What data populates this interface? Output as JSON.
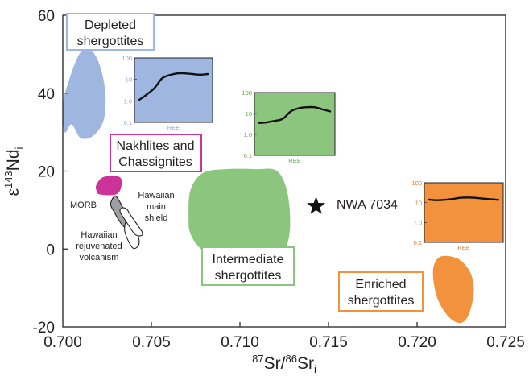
{
  "chart_data": {
    "type": "scatter",
    "title": "",
    "xlabel": {
      "sup1": "87",
      "base1": "Sr/",
      "sup2": "86",
      "base2": "Sr",
      "sub": "i"
    },
    "ylabel": {
      "prefix": "ε",
      "sup": "143",
      "base": "Nd",
      "sub": "i"
    },
    "xlim": [
      0.7,
      0.725
    ],
    "ylim": [
      -20,
      60
    ],
    "x_ticks": [
      "0.700",
      "0.705",
      "0.710",
      "0.715",
      "0.720",
      "0.725"
    ],
    "y_ticks": [
      "60",
      "40",
      "20",
      "0",
      "-20"
    ],
    "grid": false,
    "fields": [
      {
        "name": "Depleted shergottites",
        "color": "#9fb6e0",
        "outline": [
          [
            0.7005,
            32
          ],
          [
            0.7001,
            30
          ],
          [
            0.7,
            37
          ],
          [
            0.7004,
            44
          ],
          [
            0.701,
            50.5
          ],
          [
            0.7016,
            51
          ],
          [
            0.7021,
            47
          ],
          [
            0.7024,
            40
          ],
          [
            0.7023,
            33
          ],
          [
            0.7017,
            29
          ],
          [
            0.701,
            28.5
          ]
        ]
      },
      {
        "name": "Nakhlites and Chassignites",
        "color": "#cc3399",
        "outline": [
          [
            0.7019,
            16.5
          ],
          [
            0.7023,
            18.5
          ],
          [
            0.7032,
            18.5
          ],
          [
            0.7033,
            16
          ],
          [
            0.703,
            14
          ],
          [
            0.7021,
            14
          ],
          [
            0.7019,
            15
          ]
        ]
      },
      {
        "name": "Intermediate shergottites",
        "color": "#8cc67e",
        "outline": [
          [
            0.7071,
            8
          ],
          [
            0.7072,
            15
          ],
          [
            0.7079,
            19.5
          ],
          [
            0.7092,
            20.5
          ],
          [
            0.7109,
            20.5
          ],
          [
            0.7121,
            20
          ],
          [
            0.7127,
            14
          ],
          [
            0.7128,
            4
          ],
          [
            0.7122,
            -3
          ],
          [
            0.7111,
            -5.5
          ],
          [
            0.7093,
            -5
          ],
          [
            0.7078,
            0
          ],
          [
            0.7072,
            4
          ]
        ]
      },
      {
        "name": "Enriched shergottites",
        "color": "#f3923c",
        "outline": [
          [
            0.7209,
            -5.5
          ],
          [
            0.7213,
            -2
          ],
          [
            0.7223,
            -2.5
          ],
          [
            0.723,
            -6
          ],
          [
            0.7232,
            -11
          ],
          [
            0.7229,
            -17
          ],
          [
            0.7224,
            -19
          ],
          [
            0.7217,
            -17
          ],
          [
            0.7211,
            -12
          ]
        ]
      },
      {
        "name": "MORB",
        "color": "#9d9fa2",
        "outline": [
          [
            0.7027,
            11.5
          ],
          [
            0.7029,
            13.5
          ],
          [
            0.7031,
            13
          ],
          [
            0.7036,
            8.5
          ],
          [
            0.7037,
            5
          ],
          [
            0.7033,
            6.5
          ],
          [
            0.7029,
            9.5
          ]
        ]
      },
      {
        "name": "Hawaiian main shield",
        "color": "#ffffff",
        "outline": [
          [
            0.7036,
            7.5
          ],
          [
            0.7039,
            8
          ],
          [
            0.7043,
            2.5
          ],
          [
            0.7042,
            0.5
          ],
          [
            0.7039,
            0.5
          ],
          [
            0.7035,
            4.5
          ]
        ]
      }
    ],
    "points": [
      {
        "name": "NWA 7034",
        "x": 0.7143,
        "y": 11,
        "marker": "star"
      }
    ],
    "legend_boxes": [
      {
        "lines": [
          "Depleted",
          "shergottites"
        ],
        "color": "#9fb6e0"
      },
      {
        "lines": [
          "Nakhlites and",
          "Chassignites"
        ],
        "color": "#cc3399"
      },
      {
        "lines": [
          "Intermediate",
          "shergottites"
        ],
        "color": "#8cc67e"
      },
      {
        "lines": [
          "Enriched",
          "shergottites"
        ],
        "color": "#f3923c"
      }
    ],
    "annotations": [
      {
        "lines": [
          "MORB"
        ]
      },
      {
        "lines": [
          "Hawaiian",
          "main",
          "shield"
        ]
      },
      {
        "lines": [
          "Hawaiian",
          "rejuvenated",
          "volcanism"
        ]
      }
    ],
    "ree_insets": [
      {
        "group": "Depleted shergottites",
        "fill": "#9fb6e0",
        "tick_color": "#8fa6d8",
        "y_ticks": [
          "100",
          "10",
          "1.0",
          "0.1"
        ],
        "xlabel": "REE",
        "profile_log10": [
          0.05,
          0.3,
          0.6,
          1.05,
          1.2,
          1.28,
          1.28,
          1.25,
          1.22,
          1.25
        ]
      },
      {
        "group": "Intermediate shergottites",
        "fill": "#8cc67e",
        "tick_color": "#5fa84f",
        "y_ticks": [
          "100",
          "10",
          "1.0",
          "0.1"
        ],
        "xlabel": "REE",
        "profile_log10": [
          0.55,
          0.58,
          0.65,
          0.75,
          1.1,
          1.25,
          1.3,
          1.3,
          1.2,
          1.1
        ]
      },
      {
        "group": "Enriched shergottites",
        "fill": "#f3923c",
        "tick_color": "#e07a20",
        "y_ticks": [
          "100",
          "10",
          "1.0",
          "0.1"
        ],
        "xlabel": "REE",
        "profile_log10": [
          1.15,
          1.12,
          1.14,
          1.18,
          1.24,
          1.26,
          1.24,
          1.2,
          1.17,
          1.14
        ]
      }
    ]
  }
}
